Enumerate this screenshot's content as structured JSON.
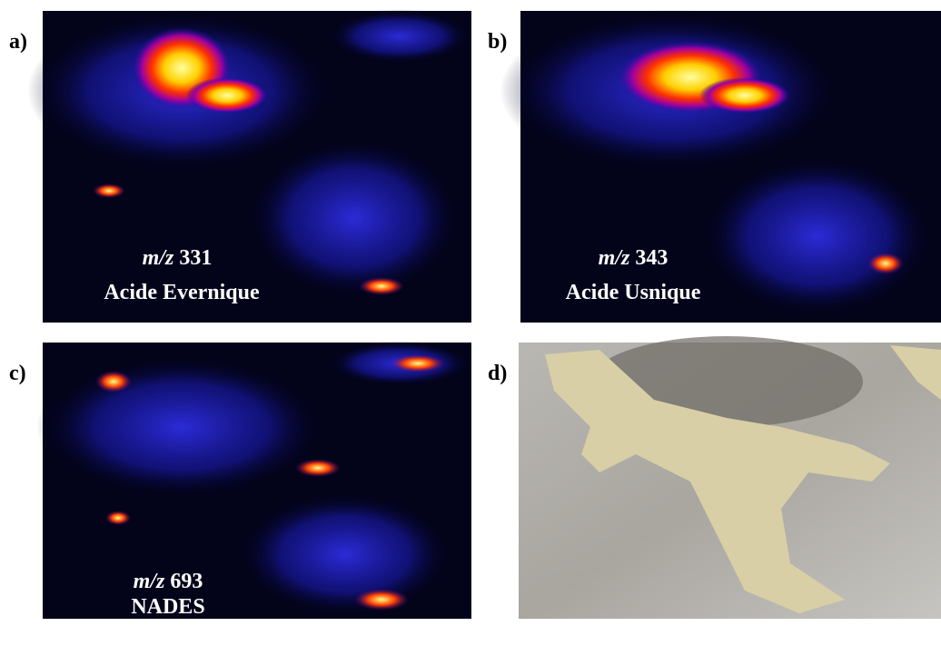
{
  "panels": [
    {
      "label": "a)",
      "mz_label": "m/z",
      "mz_value": 331,
      "compound": "Acide Evernique"
    },
    {
      "label": "b)",
      "mz_label": "m/z",
      "mz_value": 343,
      "compound": "Acide Usnique"
    },
    {
      "label": "c)",
      "mz_label": "m/z",
      "mz_value": 693,
      "compound": "NADES"
    },
    {
      "label": "d)"
    }
  ]
}
